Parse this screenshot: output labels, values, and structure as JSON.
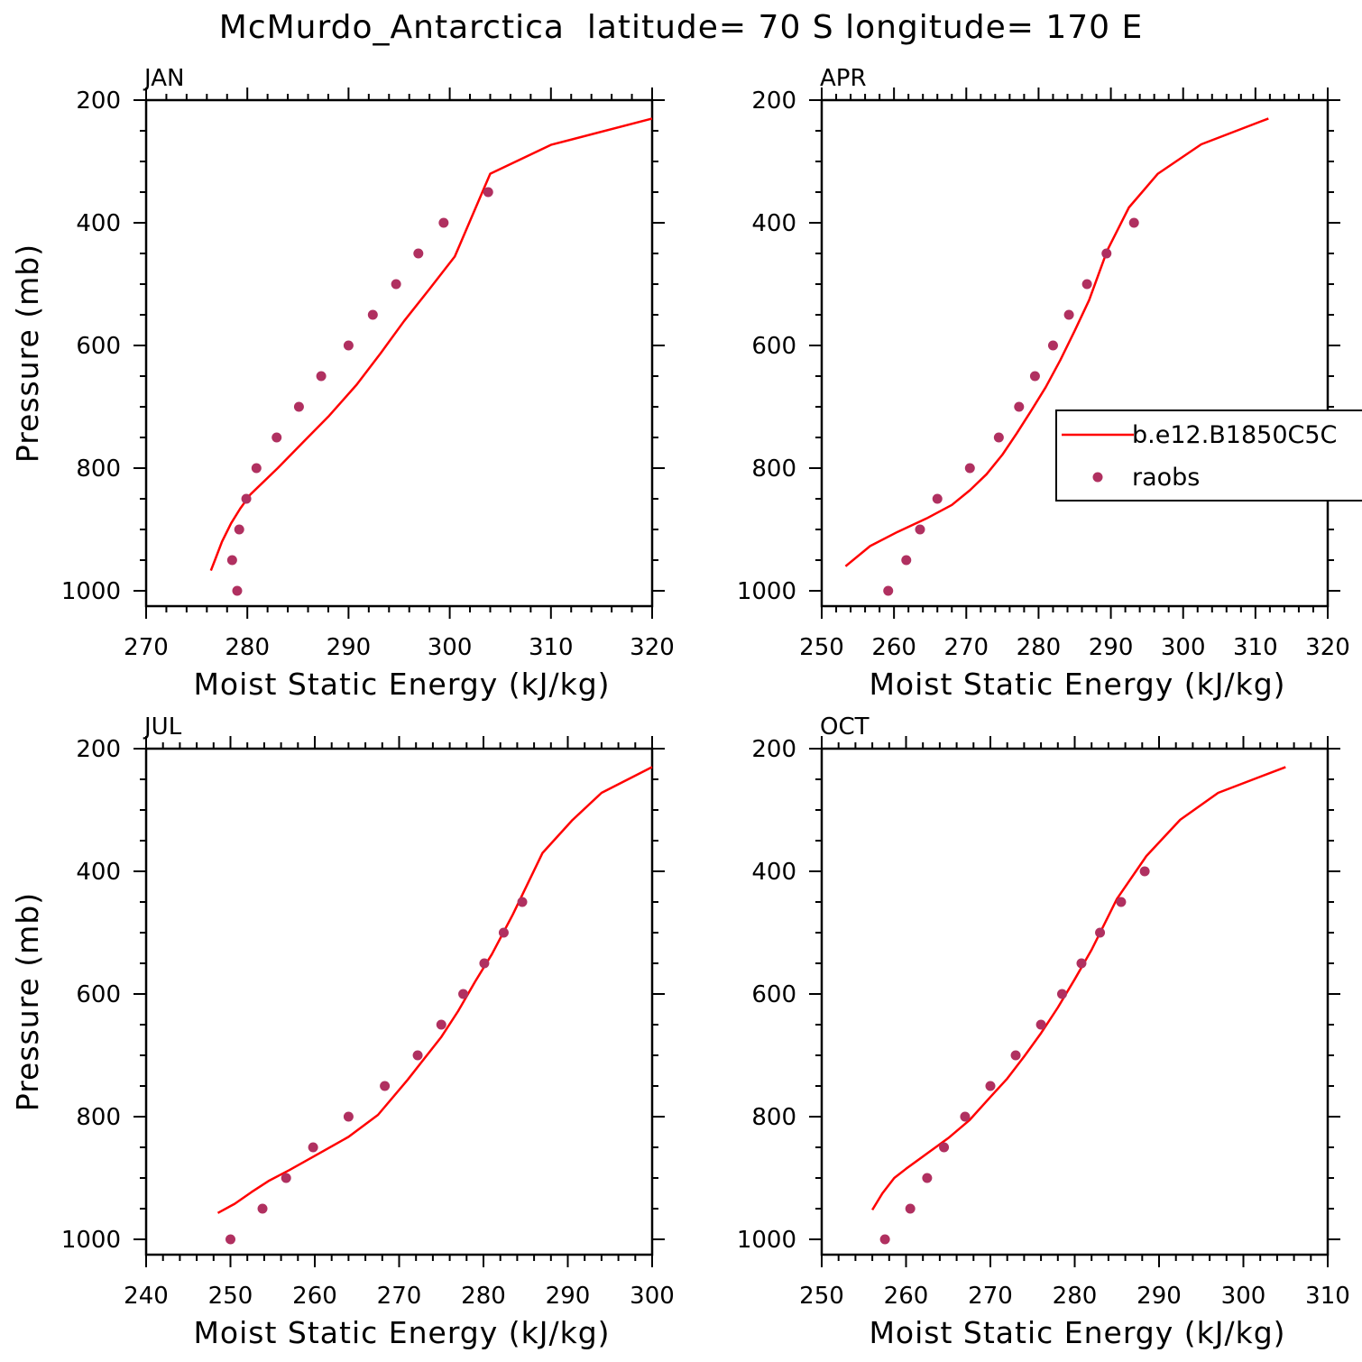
{
  "title": "McMurdo_Antarctica  latitude= 70 S longitude= 170 E",
  "colors": {
    "model": "#ff0000",
    "obs": "#b03060",
    "axis": "#000000"
  },
  "legend": {
    "model_label": "b.e12.B1850C5C",
    "obs_label": "raobs"
  },
  "chart_data": [
    {
      "type": "line",
      "panel": "JAN",
      "xlabel": "Moist Static Energy (kJ/kg)",
      "ylabel": "Pressure (mb)",
      "xlim": [
        270,
        320
      ],
      "ylim": [
        1025,
        200
      ],
      "xticks": [
        270,
        280,
        290,
        300,
        310,
        320
      ],
      "yticks": [
        200,
        400,
        600,
        800,
        1000
      ],
      "series": [
        {
          "name": "b.e12.B1850C5C",
          "kind": "line",
          "x": [
            276.4,
            276.8,
            277.5,
            278.4,
            279.3,
            280.3,
            283.0,
            285.5,
            288.0,
            290.8,
            293.2,
            295.5,
            298.0,
            300.5,
            304.0,
            310.0,
            320.0
          ],
          "y": [
            967,
            950,
            920,
            890,
            866,
            843,
            800,
            758,
            716,
            664,
            612,
            560,
            508,
            455,
            320,
            273,
            230
          ]
        },
        {
          "name": "raobs",
          "kind": "scatter",
          "x": [
            279.0,
            278.5,
            279.2,
            279.9,
            280.9,
            282.9,
            285.1,
            287.3,
            290.0,
            292.4,
            294.7,
            296.9,
            299.4,
            303.8
          ],
          "y": [
            1000,
            950,
            900,
            850,
            800,
            750,
            700,
            650,
            600,
            550,
            500,
            450,
            400,
            350
          ]
        }
      ]
    },
    {
      "type": "line",
      "panel": "APR",
      "xlabel": "Moist Static Energy (kJ/kg)",
      "ylabel": "",
      "xlim": [
        250,
        320
      ],
      "ylim": [
        1025,
        200
      ],
      "xticks": [
        250,
        260,
        270,
        280,
        290,
        300,
        310,
        320
      ],
      "yticks": [
        200,
        400,
        600,
        800,
        1000
      ],
      "series": [
        {
          "name": "b.e12.B1850C5C",
          "kind": "line",
          "x": [
            253.3,
            256.7,
            260.5,
            264.5,
            268.0,
            270.5,
            272.8,
            275.0,
            277.0,
            279.0,
            281.0,
            283.0,
            285.0,
            287.0,
            289.5,
            292.5,
            296.5,
            302.5,
            311.8
          ],
          "y": [
            960,
            927,
            904,
            882,
            860,
            836,
            810,
            778,
            743,
            706,
            668,
            624,
            576,
            526,
            445,
            375,
            320,
            272,
            230
          ]
        },
        {
          "name": "raobs",
          "kind": "scatter",
          "x": [
            259.2,
            261.7,
            263.6,
            266.0,
            270.5,
            274.5,
            277.3,
            279.5,
            282.0,
            284.2,
            286.7,
            289.4,
            293.2
          ],
          "y": [
            1000,
            950,
            900,
            850,
            800,
            750,
            700,
            650,
            600,
            550,
            500,
            450,
            400
          ]
        }
      ]
    },
    {
      "type": "line",
      "panel": "JUL",
      "xlabel": "Moist Static Energy (kJ/kg)",
      "ylabel": "Pressure (mb)",
      "xlim": [
        240,
        300
      ],
      "ylim": [
        1025,
        200
      ],
      "xticks": [
        240,
        250,
        260,
        270,
        280,
        290,
        300
      ],
      "yticks": [
        200,
        400,
        600,
        800,
        1000
      ],
      "series": [
        {
          "name": "b.e12.B1850C5C",
          "kind": "line",
          "x": [
            248.5,
            250.5,
            252.5,
            254.5,
            257.0,
            260.5,
            264.0,
            267.5,
            271.0,
            273.0,
            275.0,
            277.0,
            279.0,
            281.0,
            283.5,
            287.0,
            290.5,
            294.0,
            300.0
          ],
          "y": [
            957,
            942,
            923,
            905,
            887,
            860,
            833,
            797,
            740,
            705,
            670,
            628,
            580,
            535,
            470,
            370,
            317,
            272,
            230
          ]
        },
        {
          "name": "raobs",
          "kind": "scatter",
          "x": [
            250.0,
            253.8,
            256.6,
            259.8,
            264.0,
            268.3,
            272.2,
            275.0,
            277.6,
            280.1,
            282.4,
            284.6
          ],
          "y": [
            1000,
            950,
            900,
            850,
            800,
            750,
            700,
            650,
            600,
            550,
            500,
            450
          ]
        }
      ]
    },
    {
      "type": "line",
      "panel": "OCT",
      "xlabel": "Moist Static Energy (kJ/kg)",
      "ylabel": "",
      "xlim": [
        250,
        310
      ],
      "ylim": [
        1025,
        200
      ],
      "xticks": [
        250,
        260,
        270,
        280,
        290,
        300,
        310
      ],
      "yticks": [
        200,
        400,
        600,
        800,
        1000
      ],
      "series": [
        {
          "name": "b.e12.B1850C5C",
          "kind": "line",
          "x": [
            256.0,
            257.2,
            258.6,
            260.0,
            262.5,
            265.0,
            267.5,
            270.0,
            272.0,
            274.0,
            276.0,
            278.0,
            280.0,
            282.0,
            285.0,
            288.5,
            292.5,
            297.0,
            305.0
          ],
          "y": [
            952,
            925,
            900,
            885,
            860,
            835,
            806,
            768,
            738,
            702,
            664,
            622,
            576,
            528,
            445,
            375,
            316,
            272,
            230
          ]
        },
        {
          "name": "raobs",
          "kind": "scatter",
          "x": [
            257.5,
            260.5,
            262.5,
            264.5,
            267.0,
            270.0,
            273.0,
            276.0,
            278.5,
            280.8,
            283.0,
            285.5,
            288.3
          ],
          "y": [
            1000,
            950,
            900,
            850,
            800,
            750,
            700,
            650,
            600,
            550,
            500,
            450,
            400
          ]
        }
      ]
    }
  ]
}
